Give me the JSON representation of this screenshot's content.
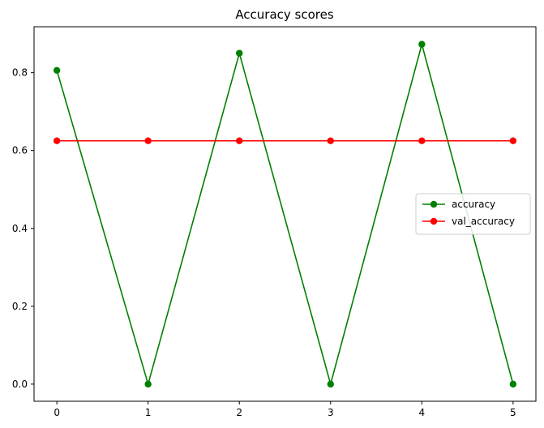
{
  "chart_data": {
    "type": "line",
    "title": "Accuracy scores",
    "xlabel": "",
    "ylabel": "",
    "x": [
      0,
      1,
      2,
      3,
      4,
      5
    ],
    "xlim": [
      -0.25,
      5.25
    ],
    "ylim": [
      -0.044,
      0.918
    ],
    "xticks": [
      0,
      1,
      2,
      3,
      4,
      5
    ],
    "yticks": [
      0.0,
      0.2,
      0.4,
      0.6,
      0.8
    ],
    "xtick_labels": [
      "0",
      "1",
      "2",
      "3",
      "4",
      "5"
    ],
    "ytick_labels": [
      "0.0",
      "0.2",
      "0.4",
      "0.6",
      "0.8"
    ],
    "grid": false,
    "legend_position": "center-right",
    "series": [
      {
        "name": "accuracy",
        "color": "#008000",
        "marker": "circle",
        "values": [
          0.806,
          0.0,
          0.85,
          0.0,
          0.873,
          0.0
        ]
      },
      {
        "name": "val_accuracy",
        "color": "#ff0000",
        "marker": "circle",
        "values": [
          0.625,
          0.625,
          0.625,
          0.625,
          0.625,
          0.625
        ]
      }
    ]
  }
}
